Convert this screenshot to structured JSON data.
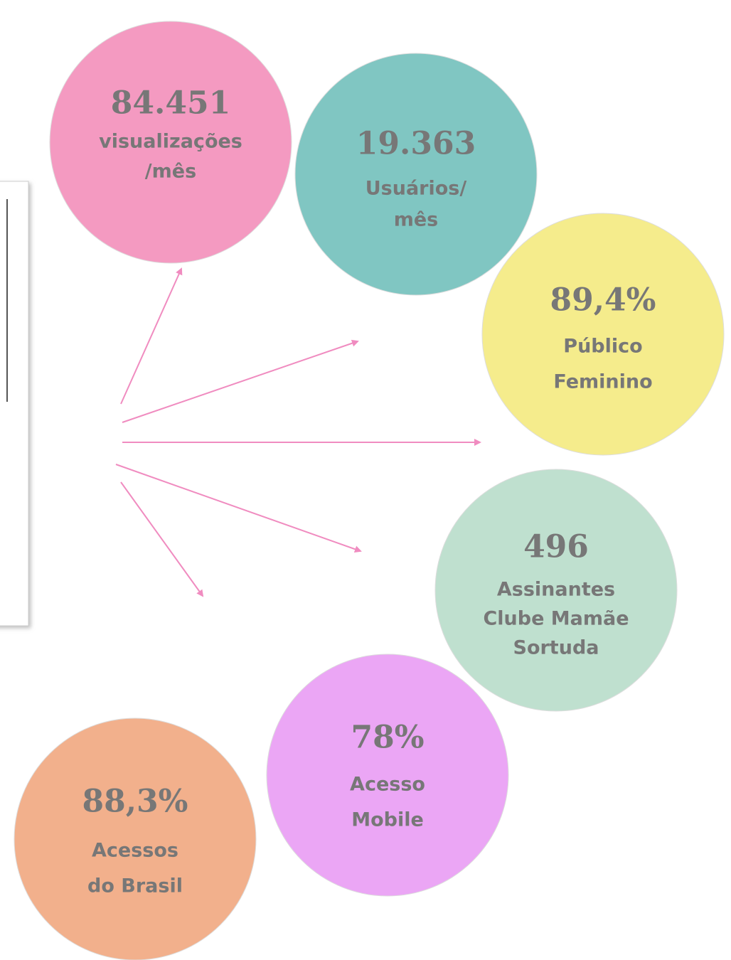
{
  "nodes": [
    {
      "value": "84.451",
      "label": [
        "visualizações",
        "/mês"
      ],
      "color": "#f49ac1"
    },
    {
      "value": "19.363",
      "label": [
        "Usuários/",
        "mês"
      ],
      "color": "#80c6c2"
    },
    {
      "value": "89,4%",
      "label": [
        "Público",
        "Feminino"
      ],
      "color": "#f5ec8c"
    },
    {
      "value": "496",
      "label": [
        "Assinantes",
        "Clube Mamãe",
        "Sortuda"
      ],
      "color": "#bfe0cf"
    },
    {
      "value": "78%",
      "label": [
        "Acesso",
        "Mobile"
      ],
      "color": "#eba6f5"
    },
    {
      "value": "88,3%",
      "label": [
        "Acessos",
        "do Brasil"
      ],
      "color": "#f2b08c"
    }
  ]
}
